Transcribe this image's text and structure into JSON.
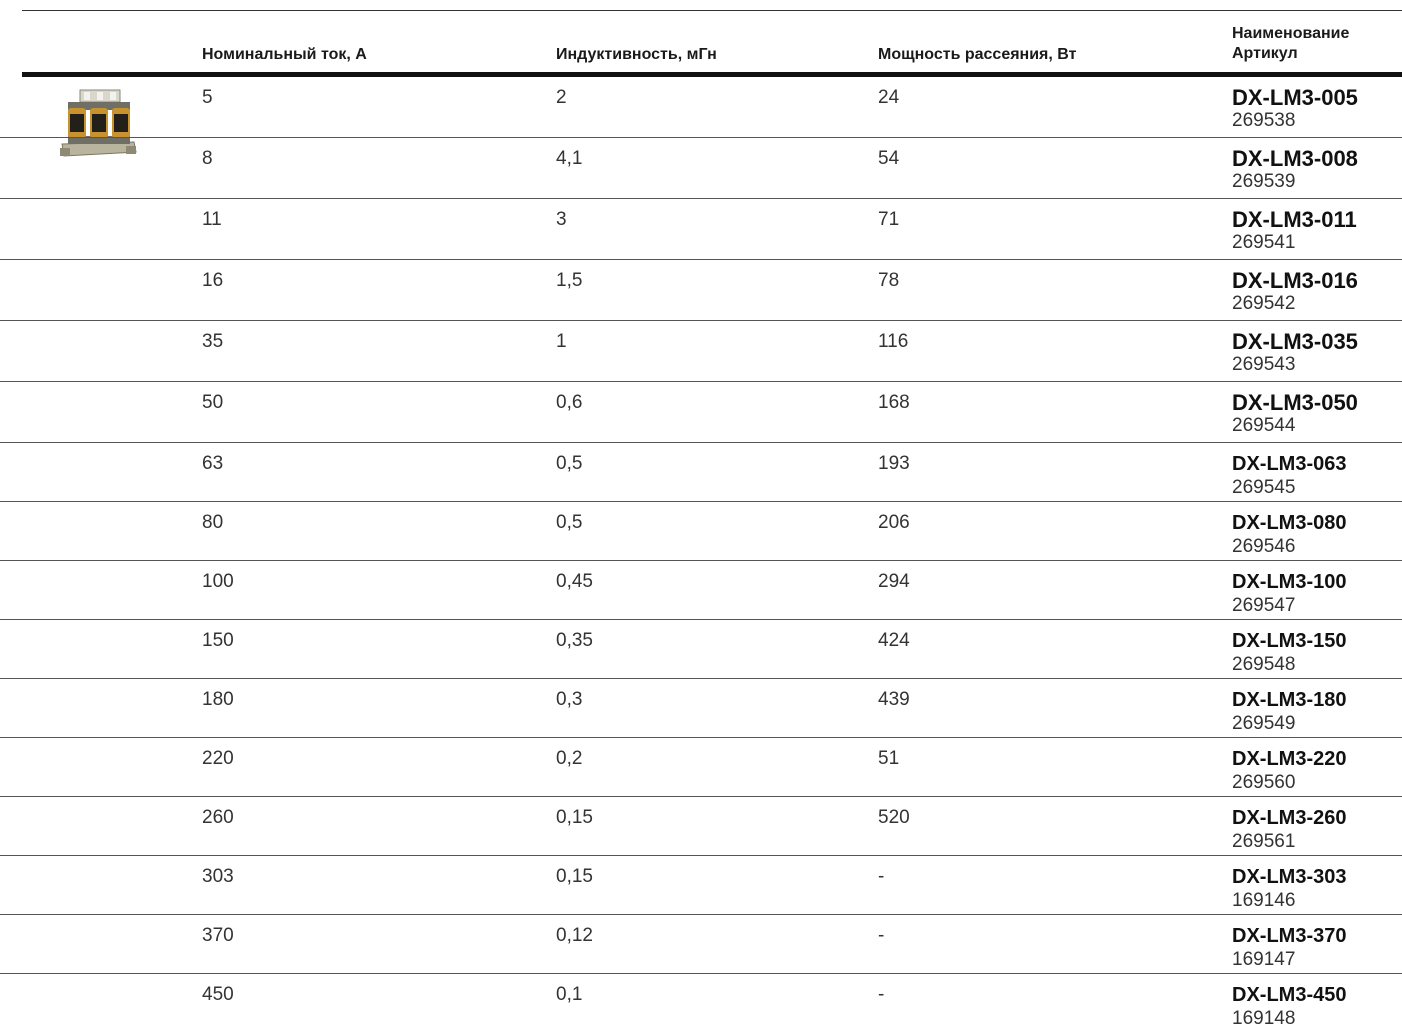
{
  "header": {
    "current": "Номинальный ток, A",
    "inductance": "Индуктивность, мГн",
    "power": "Мощность рассеяния, Вт",
    "name_line1": "Наименование",
    "name_line2": "Артикул"
  },
  "rows": [
    {
      "current": "5",
      "inductance": "2",
      "power": "24",
      "model": "DX-LM3-005",
      "article": "269538"
    },
    {
      "current": "8",
      "inductance": "4,1",
      "power": "54",
      "model": "DX-LM3-008",
      "article": "269539"
    },
    {
      "current": "11",
      "inductance": "3",
      "power": "71",
      "model": "DX-LM3-011",
      "article": "269541"
    },
    {
      "current": "16",
      "inductance": "1,5",
      "power": "78",
      "model": "DX-LM3-016",
      "article": "269542"
    },
    {
      "current": "35",
      "inductance": "1",
      "power": "116",
      "model": "DX-LM3-035",
      "article": "269543"
    },
    {
      "current": "50",
      "inductance": "0,6",
      "power": "168",
      "model": "DX-LM3-050",
      "article": "269544"
    },
    {
      "current": "63",
      "inductance": "0,5",
      "power": "193",
      "model": "DX-LM3-063",
      "article": "269545"
    },
    {
      "current": "80",
      "inductance": "0,5",
      "power": "206",
      "model": "DX-LM3-080",
      "article": "269546"
    },
    {
      "current": "100",
      "inductance": "0,45",
      "power": "294",
      "model": "DX-LM3-100",
      "article": "269547"
    },
    {
      "current": "150",
      "inductance": "0,35",
      "power": "424",
      "model": "DX-LM3-150",
      "article": "269548"
    },
    {
      "current": "180",
      "inductance": "0,3",
      "power": "439",
      "model": "DX-LM3-180",
      "article": "269549"
    },
    {
      "current": "220",
      "inductance": "0,2",
      "power": "51",
      "model": "DX-LM3-220",
      "article": "269560"
    },
    {
      "current": "260",
      "inductance": "0,15",
      "power": "520",
      "model": "DX-LM3-260",
      "article": "269561"
    },
    {
      "current": "303",
      "inductance": "0,15",
      "power": "-",
      "model": "DX-LM3-303",
      "article": "169146"
    },
    {
      "current": "370",
      "inductance": "0,12",
      "power": "-",
      "model": "DX-LM3-370",
      "article": "169147"
    },
    {
      "current": "450",
      "inductance": "0,1",
      "power": "-",
      "model": "DX-LM3-450",
      "article": "169148"
    }
  ]
}
